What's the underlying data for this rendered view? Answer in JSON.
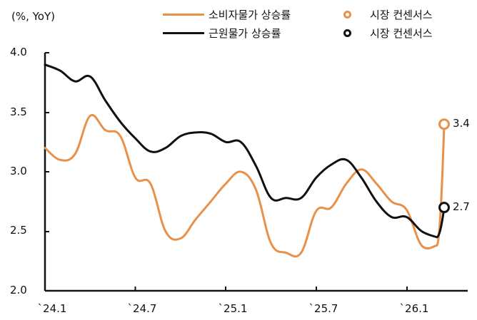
{
  "chart_data": {
    "type": "line",
    "title": "",
    "ylabel": "(%, YoY)",
    "xlabel": "",
    "ylim": [
      2.0,
      4.0
    ],
    "yticks": [
      "4.0",
      "3.5",
      "3.0",
      "2.5",
      "2.0"
    ],
    "xtick_labels": [
      "`24.1",
      "`24.7",
      "`25.1",
      "`25.7",
      "`26.1"
    ],
    "grid": false,
    "legend_position": "top",
    "x": [
      "24.1",
      "24.2",
      "24.3",
      "24.4",
      "24.5",
      "24.6",
      "24.7",
      "24.8",
      "24.9",
      "24.10",
      "24.11",
      "24.12",
      "25.1",
      "25.2",
      "25.3",
      "25.4",
      "25.5",
      "25.6",
      "25.7",
      "25.8",
      "25.9",
      "25.10",
      "25.11",
      "25.12",
      "26.1",
      "26.2",
      "26.3"
    ],
    "series": [
      {
        "name": "소비자물가 상승률",
        "color": "#E8914A",
        "values": [
          3.2,
          3.1,
          3.15,
          3.47,
          3.35,
          3.3,
          2.95,
          2.9,
          2.5,
          2.44,
          2.6,
          2.75,
          2.9,
          3.0,
          2.85,
          2.4,
          2.32,
          2.32,
          2.67,
          2.7,
          2.9,
          3.02,
          2.9,
          2.75,
          2.68,
          2.38,
          2.38
        ]
      },
      {
        "name": "근원물가 상승률",
        "color": "#111111",
        "values": [
          3.9,
          3.85,
          3.76,
          3.8,
          3.6,
          3.42,
          3.28,
          3.17,
          3.2,
          3.3,
          3.33,
          3.32,
          3.25,
          3.25,
          3.05,
          2.78,
          2.78,
          2.78,
          2.95,
          3.06,
          3.1,
          2.95,
          2.75,
          2.62,
          2.62,
          2.5,
          2.45
        ]
      }
    ],
    "consensus": [
      {
        "name": "시장 컨센서스",
        "series": "소비자물가 상승률",
        "value": 3.4,
        "label": "3.4",
        "color": "#E8914A"
      },
      {
        "name": "시장 컨센서스",
        "series": "근원물가 상승률",
        "value": 2.7,
        "label": "2.7",
        "color": "#111111"
      }
    ]
  },
  "legend": {
    "cpi_label": "소비자물가 상승률",
    "core_label": "근원물가 상승률",
    "cpi_consensus_label": "시장 컨센서스",
    "core_consensus_label": "시장 컨센서스"
  },
  "axis": {
    "unit": "(%, YoY)",
    "y": [
      "4.0",
      "3.5",
      "3.0",
      "2.5",
      "2.0"
    ],
    "x": [
      "`24.1",
      "`24.7",
      "`25.1",
      "`25.7",
      "`26.1"
    ]
  },
  "annotations": {
    "cpi_end": "3.4",
    "core_end": "2.7"
  }
}
